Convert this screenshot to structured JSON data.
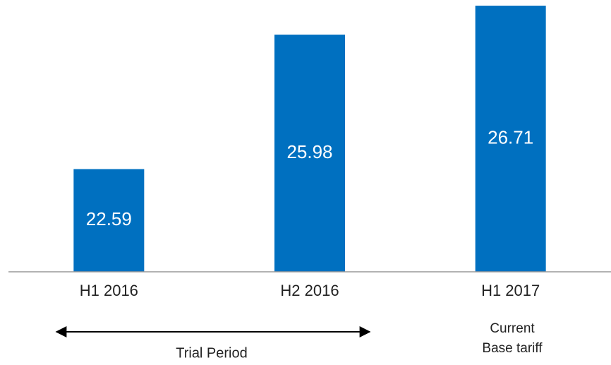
{
  "chart_data": {
    "type": "bar",
    "categories": [
      "H1 2016",
      "H2 2016",
      "H1 2017"
    ],
    "values": [
      22.59,
      25.98,
      26.71
    ],
    "color": "#0070c0",
    "ylim": [
      20,
      26.8
    ],
    "annotations": [
      {
        "text": "Trial Period"
      },
      {
        "lines": [
          "Current",
          "Base tariff"
        ]
      }
    ]
  }
}
